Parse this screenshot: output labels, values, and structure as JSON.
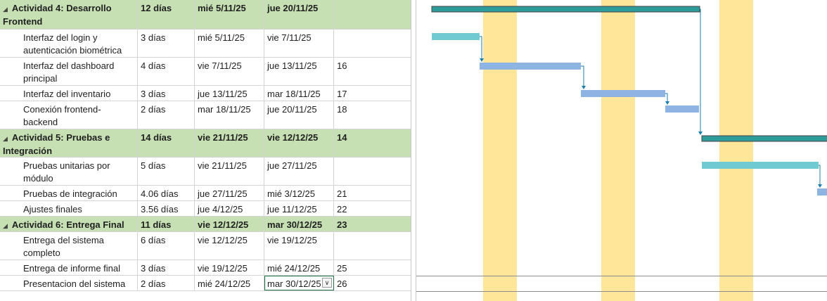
{
  "colors": {
    "summary_row_bg": "#c6e0b4",
    "summary_bar": "#2e9c9a",
    "task_bar_teal": "#6fcad1",
    "task_bar_blue": "#8db4e2",
    "nonworking_band": "#ffe699",
    "link_line": "#1a7fae"
  },
  "rows": [
    {
      "type": "summary",
      "name": "Actividad 4: Desarrollo Frontend",
      "duration": "12 días",
      "start": "mié 5/11/25",
      "end": "jue 20/11/25",
      "pred": ""
    },
    {
      "type": "task",
      "name": "Interfaz del login y autenticación biométrica",
      "duration": "3 días",
      "start": "mié 5/11/25",
      "end": "vie 7/11/25",
      "pred": ""
    },
    {
      "type": "task",
      "name": "Interfaz del dashboard principal",
      "duration": "4 días",
      "start": "vie 7/11/25",
      "end": "jue 13/11/25",
      "pred": "16"
    },
    {
      "type": "task",
      "name": "Interfaz del inventario",
      "duration": "3 días",
      "start": "jue 13/11/25",
      "end": "mar 18/11/25",
      "pred": "17"
    },
    {
      "type": "task",
      "name": "Conexión frontend-backend",
      "duration": "2 días",
      "start": "mar 18/11/25",
      "end": "jue 20/11/25",
      "pred": "18"
    },
    {
      "type": "summary",
      "name": "Actividad 5: Pruebas e Integración",
      "duration": "14 días",
      "start": "vie 21/11/25",
      "end": "vie 12/12/25",
      "pred": "14"
    },
    {
      "type": "task",
      "name": "Pruebas unitarias por módulo",
      "duration": "5 días",
      "start": "vie 21/11/25",
      "end": "jue 27/11/25",
      "pred": ""
    },
    {
      "type": "task",
      "name": "Pruebas de integración",
      "duration": "4.06 días",
      "start": "jue 27/11/25",
      "end": "mié 3/12/25",
      "pred": "21"
    },
    {
      "type": "task",
      "name": "Ajustes finales",
      "duration": "3.56 días",
      "start": "jue 4/12/25",
      "end": "jue 11/12/25",
      "pred": "22"
    },
    {
      "type": "summary",
      "name": "Actividad 6: Entrega Final",
      "duration": "11 días",
      "start": "vie 12/12/25",
      "end": "mar 30/12/25",
      "pred": "23"
    },
    {
      "type": "task",
      "name": "Entrega del sistema completo",
      "duration": "6 días",
      "start": "vie 12/12/25",
      "end": "vie 19/12/25",
      "pred": ""
    },
    {
      "type": "task",
      "name": "Entrega de informe final",
      "duration": "3 días",
      "start": "vie 19/12/25",
      "end": "mié 24/12/25",
      "pred": "25"
    },
    {
      "type": "task",
      "name": "Presentacion del sistema",
      "duration": "2 días",
      "start": "mié 24/12/25",
      "end": "mar 30/12/25",
      "pred": "26"
    }
  ]
}
